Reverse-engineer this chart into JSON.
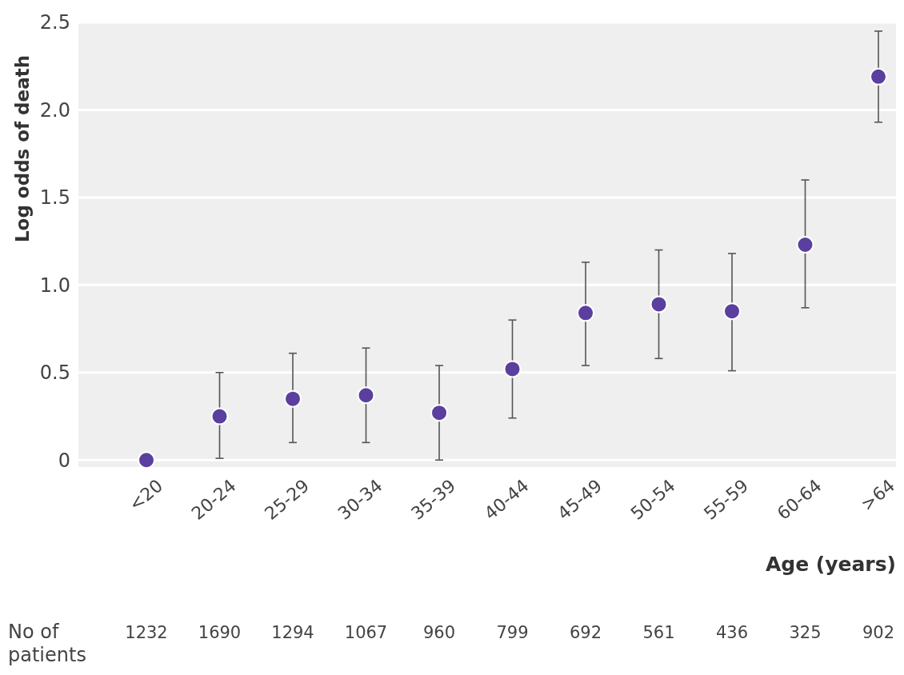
{
  "chart_data": {
    "type": "scatter",
    "xlabel": "Age (years)",
    "ylabel": "Log odds of death",
    "categories": [
      "<20",
      "20-24",
      "25-29",
      "30-34",
      "35-39",
      "40-44",
      "45-49",
      "50-54",
      "55-59",
      "60-64",
      ">64"
    ],
    "series": [
      {
        "color": "#5b3f9e",
        "values": [
          0,
          0.25,
          0.35,
          0.37,
          0.27,
          0.52,
          0.84,
          0.89,
          0.85,
          1.23,
          2.19
        ],
        "errors": [
          null,
          [
            0.01,
            0.5
          ],
          [
            0.1,
            0.61
          ],
          [
            0.1,
            0.64
          ],
          [
            0,
            0.54
          ],
          [
            0.24,
            0.8
          ],
          [
            0.54,
            1.13
          ],
          [
            0.58,
            1.2
          ],
          [
            0.51,
            1.18
          ],
          [
            0.87,
            1.6
          ],
          [
            1.93,
            2.45
          ]
        ]
      }
    ],
    "ylim": [
      -0.04,
      2.5
    ],
    "yticks": [
      0,
      0.5,
      {
        "value": 1,
        "label": "1.0"
      },
      1.5,
      {
        "value": 2,
        "label": "2.0"
      },
      2.5
    ],
    "grid": "y",
    "marker": "circle",
    "annotations": [
      "No of patients",
      "1232",
      "1690",
      "1294",
      "1067",
      "960",
      "799",
      "692",
      "561",
      "436",
      "325",
      "902"
    ]
  }
}
